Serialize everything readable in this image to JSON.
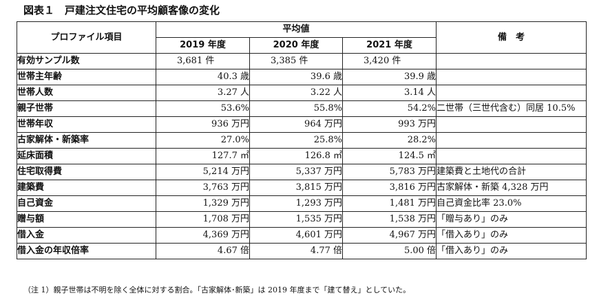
{
  "title": "図表１　戸建注文住宅の平均顧客像の変化",
  "header": {
    "item": "プロファイル項目",
    "avg": "平均値",
    "notes": "備　考",
    "years": [
      "2019 年度",
      "2020 年度",
      "2021 年度"
    ]
  },
  "rows": [
    {
      "label": "有効サンプル数",
      "v": [
        "3,681 件",
        "3,385 件",
        "3,420 件"
      ],
      "note": "",
      "align": "left"
    },
    {
      "label": "世帯主年齢",
      "v": [
        "40.3 歳",
        "39.6 歳",
        "39.9 歳"
      ],
      "note": ""
    },
    {
      "label": "世帯人数",
      "v": [
        "3.27 人",
        "3.22 人",
        "3.14 人"
      ],
      "note": ""
    },
    {
      "label": "親子世帯",
      "v": [
        "53.6%",
        "55.8%",
        "54.2%"
      ],
      "note": "二世帯（三世代含む）同居 10.5%"
    },
    {
      "label": "世帯年収",
      "v": [
        "936 万円",
        "964 万円",
        "993 万円"
      ],
      "note": ""
    },
    {
      "label": "古家解体・新築率",
      "v": [
        "27.0%",
        "25.8%",
        "28.2%"
      ],
      "note": ""
    },
    {
      "label": "延床面積",
      "v": [
        "127.7 ㎡",
        "126.8 ㎡",
        "124.5 ㎡"
      ],
      "note": ""
    },
    {
      "label": "住宅取得費",
      "v": [
        "5,214 万円",
        "5,337 万円",
        "5,783 万円"
      ],
      "note": "建築費と土地代の合計"
    },
    {
      "label": "建築費",
      "v": [
        "3,763 万円",
        "3,815 万円",
        "3,816 万円"
      ],
      "note": "古家解体・新築 4,328 万円"
    },
    {
      "label": "自己資金",
      "v": [
        "1,329 万円",
        "1,293 万円",
        "1,481 万円"
      ],
      "note": "自己資金比率 23.0%"
    },
    {
      "label": "贈与額",
      "v": [
        "1,708 万円",
        "1,535 万円",
        "1,538 万円"
      ],
      "note": "「贈与あり」のみ"
    },
    {
      "label": "借入金",
      "v": [
        "4,369 万円",
        "4,601 万円",
        "4,967 万円"
      ],
      "note": "「借入あり」のみ"
    },
    {
      "label": "借入金の年収倍率",
      "v": [
        "4.67 倍",
        "4.77 倍",
        "5.00 倍"
      ],
      "note": "「借入あり」のみ"
    }
  ],
  "footnote": "（注 1）親子世帯は不明を除く全体に対する割合。「古家解体･新築」は 2019 年度まで「建て替え」としていた。"
}
